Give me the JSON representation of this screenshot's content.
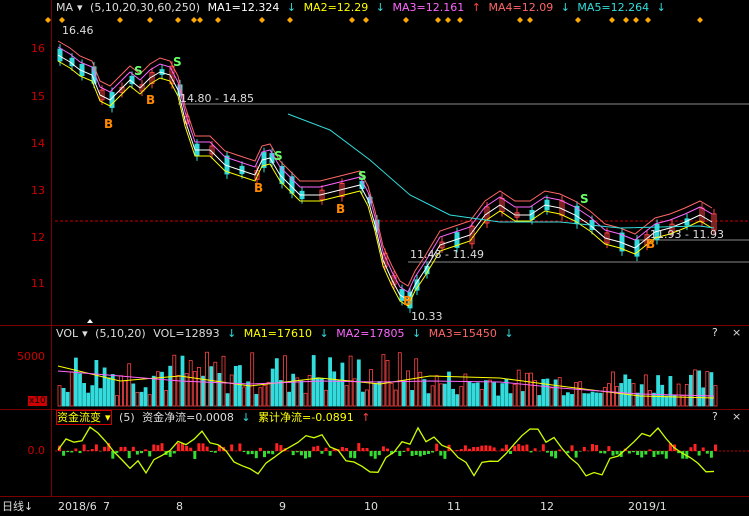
{
  "price": {
    "ma_header": "MA",
    "ma_params": "(5,10,20,30,60,250)",
    "ma1": "MA1=12.324",
    "ma2": "MA2=12.29",
    "ma3": "MA3=12.161",
    "ma4": "MA4=12.09",
    "ma5": "MA5=12.264",
    "y_ticks": [
      "16",
      "15",
      "14",
      "13",
      "12",
      "11"
    ],
    "high_label": "16.46",
    "low_label": "10.33",
    "level1": "14.80 - 14.85",
    "level2": "11.48 - 11.49",
    "level3": "11.93 - 11.93",
    "colors": {
      "ma1": "#ffffff",
      "ma2": "#ffff00",
      "ma3": "#ff66ff",
      "ma4": "#ff6666",
      "ma5": "#33dddd",
      "up": "#ff4444",
      "down": "#33dddd"
    }
  },
  "volume": {
    "label": "VOL",
    "params": "(5,10,20)",
    "vol": "VOL=12893",
    "ma1": "MA1=17610",
    "ma2": "MA2=17805",
    "ma3": "MA3=15450",
    "y_tick": "5000",
    "unit": "x10"
  },
  "flow": {
    "label": "资金流变",
    "params": "(5)",
    "net": "资金净流=0.0008",
    "cum": "累计净流=-0.0891",
    "y_tick": "0.0"
  },
  "bottom": {
    "period": "日线",
    "months": [
      "2018/6",
      "7",
      "8",
      "9",
      "10",
      "11",
      "12",
      "2019/1"
    ]
  },
  "help_mark": "?",
  "close_mark": "×"
}
